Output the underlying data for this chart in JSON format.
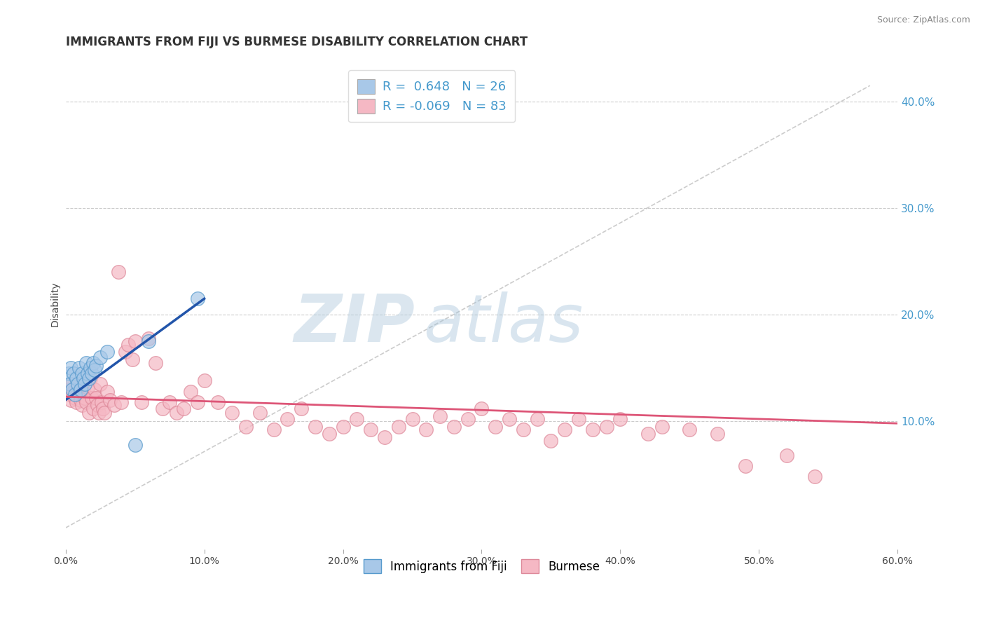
{
  "title": "IMMIGRANTS FROM FIJI VS BURMESE DISABILITY CORRELATION CHART",
  "source": "Source: ZipAtlas.com",
  "ylabel": "Disability",
  "xlim": [
    0.0,
    0.6
  ],
  "ylim": [
    -0.02,
    0.44
  ],
  "xticks": [
    0.0,
    0.1,
    0.2,
    0.3,
    0.4,
    0.5,
    0.6
  ],
  "xtick_labels": [
    "0.0%",
    "10.0%",
    "20.0%",
    "30.0%",
    "40.0%",
    "50.0%",
    "60.0%"
  ],
  "yticks_right": [
    0.1,
    0.2,
    0.3,
    0.4
  ],
  "ytick_labels_right": [
    "10.0%",
    "20.0%",
    "30.0%",
    "40.0%"
  ],
  "fiji_color": "#a8c8e8",
  "fiji_edge": "#5599cc",
  "burmese_color": "#f5b8c4",
  "burmese_edge": "#dd8899",
  "fiji_line_color": "#2255aa",
  "burmese_line_color": "#dd5577",
  "fiji_R": 0.648,
  "fiji_N": 26,
  "burmese_R": -0.069,
  "burmese_N": 83,
  "legend_label_fiji": "Immigrants from Fiji",
  "legend_label_burmese": "Burmese",
  "fiji_x": [
    0.002,
    0.003,
    0.004,
    0.005,
    0.006,
    0.007,
    0.008,
    0.009,
    0.01,
    0.011,
    0.012,
    0.013,
    0.014,
    0.015,
    0.016,
    0.017,
    0.018,
    0.019,
    0.02,
    0.021,
    0.022,
    0.025,
    0.03,
    0.05,
    0.06,
    0.095
  ],
  "fiji_y": [
    0.145,
    0.135,
    0.15,
    0.13,
    0.145,
    0.125,
    0.14,
    0.135,
    0.15,
    0.13,
    0.145,
    0.14,
    0.135,
    0.155,
    0.145,
    0.14,
    0.15,
    0.145,
    0.155,
    0.148,
    0.152,
    0.16,
    0.165,
    0.078,
    0.175,
    0.215
  ],
  "burmese_x": [
    0.002,
    0.003,
    0.004,
    0.005,
    0.006,
    0.007,
    0.008,
    0.009,
    0.01,
    0.011,
    0.012,
    0.013,
    0.014,
    0.015,
    0.016,
    0.017,
    0.018,
    0.019,
    0.02,
    0.021,
    0.022,
    0.023,
    0.024,
    0.025,
    0.026,
    0.027,
    0.028,
    0.03,
    0.032,
    0.035,
    0.038,
    0.04,
    0.043,
    0.045,
    0.048,
    0.05,
    0.055,
    0.06,
    0.065,
    0.07,
    0.075,
    0.08,
    0.085,
    0.09,
    0.095,
    0.1,
    0.11,
    0.12,
    0.13,
    0.14,
    0.15,
    0.16,
    0.17,
    0.18,
    0.19,
    0.2,
    0.21,
    0.22,
    0.23,
    0.24,
    0.25,
    0.26,
    0.27,
    0.28,
    0.29,
    0.3,
    0.31,
    0.32,
    0.33,
    0.34,
    0.35,
    0.36,
    0.37,
    0.38,
    0.39,
    0.4,
    0.42,
    0.43,
    0.45,
    0.47,
    0.49,
    0.52,
    0.54
  ],
  "burmese_y": [
    0.13,
    0.125,
    0.12,
    0.135,
    0.128,
    0.122,
    0.118,
    0.132,
    0.126,
    0.12,
    0.115,
    0.128,
    0.122,
    0.118,
    0.132,
    0.108,
    0.14,
    0.122,
    0.112,
    0.13,
    0.122,
    0.115,
    0.108,
    0.135,
    0.118,
    0.112,
    0.108,
    0.128,
    0.12,
    0.115,
    0.24,
    0.118,
    0.165,
    0.172,
    0.158,
    0.175,
    0.118,
    0.178,
    0.155,
    0.112,
    0.118,
    0.108,
    0.112,
    0.128,
    0.118,
    0.138,
    0.118,
    0.108,
    0.095,
    0.108,
    0.092,
    0.102,
    0.112,
    0.095,
    0.088,
    0.095,
    0.102,
    0.092,
    0.085,
    0.095,
    0.102,
    0.092,
    0.105,
    0.095,
    0.102,
    0.112,
    0.095,
    0.102,
    0.092,
    0.102,
    0.082,
    0.092,
    0.102,
    0.092,
    0.095,
    0.102,
    0.088,
    0.095,
    0.092,
    0.088,
    0.058,
    0.068,
    0.048
  ],
  "ref_line_x": [
    0.0,
    0.58
  ],
  "ref_line_y": [
    0.0,
    0.415
  ],
  "fiji_trend_x": [
    0.0,
    0.1
  ],
  "fiji_trend_y": [
    0.12,
    0.215
  ],
  "burmese_trend_x": [
    0.0,
    0.6
  ],
  "burmese_trend_y": [
    0.123,
    0.098
  ],
  "title_fontsize": 12,
  "axis_label_fontsize": 10,
  "tick_fontsize": 10,
  "legend_fontsize": 12,
  "watermark": "ZIPatlas",
  "bg_color": "#ffffff",
  "grid_color": "#cccccc",
  "ref_line_color": "#c0c0c0"
}
